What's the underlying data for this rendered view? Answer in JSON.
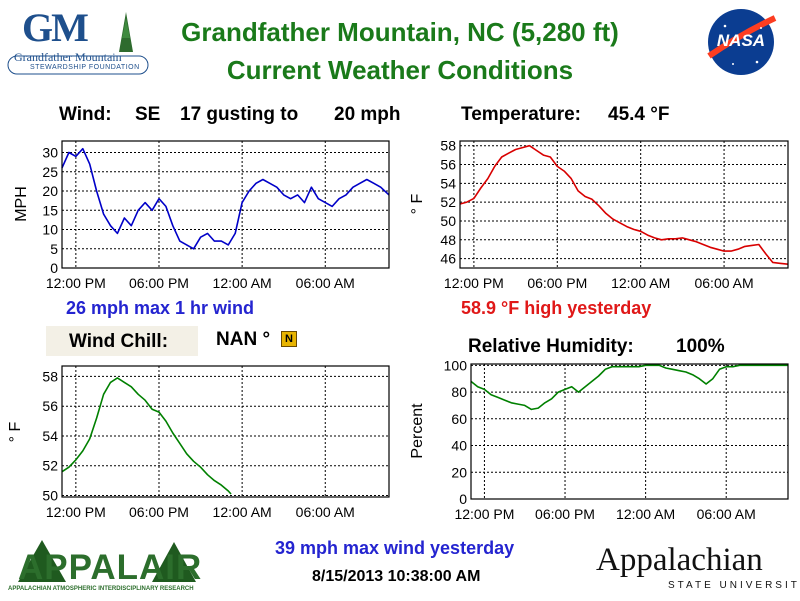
{
  "header": {
    "title_line1": "Grandfather Mountain, NC  (5,280 ft)",
    "title_line2": "Current Weather Conditions"
  },
  "logos": {
    "gm_mark": "GM",
    "gm_name": "Grandfather Mountain",
    "gm_sub": "STEWARDSHIP FOUNDATION",
    "nasa": "NASA",
    "appalair": "APPALAIR",
    "appalair_sub": "APPALACHIAN ATMOSPHERIC INTERDISCIPLINARY RESEARCH",
    "appstate": "Appalachian",
    "appstate_sub": "STATE UNIVERSITY"
  },
  "wind": {
    "label": "Wind:",
    "direction": "SE",
    "speed_text": "17 gusting to",
    "gust_text": "20 mph",
    "max_note": "26 mph max 1 hr wind"
  },
  "temperature": {
    "label": "Temperature:",
    "value": "45.4 °F",
    "high_note": "58.9 °F high yesterday"
  },
  "wind_chill": {
    "label": "Wind Chill:",
    "value": "NAN °",
    "flag_letter": "N"
  },
  "humidity": {
    "label": "Relative Humidity:",
    "value": "100%"
  },
  "footer": {
    "max_wind_yesterday": "39 mph max wind yesterday",
    "timestamp": "8/15/2013 10:38:00 AM"
  },
  "colors": {
    "title_green": "#1a7a1a",
    "wind_blue": "#0000c8",
    "temp_red": "#d80000",
    "chill_green": "#008000",
    "rh_green": "#008000",
    "note_blue": "#2424d0",
    "note_red": "#e01818"
  },
  "chart_data": [
    {
      "type": "line",
      "title": "",
      "ylabel": "MPH",
      "xlabel": "",
      "xticks": [
        "12:00 PM",
        "06:00 PM",
        "12:00 AM",
        "06:00 AM"
      ],
      "yticks": [
        0,
        5,
        10,
        15,
        20,
        25,
        30
      ],
      "ylim": [
        0,
        33
      ],
      "xlim_hours": [
        -1,
        22.6
      ],
      "grid": true,
      "series": [
        {
          "color": "#0000c8",
          "x": [
            -1,
            -0.5,
            0,
            0.5,
            1,
            1.5,
            2,
            2.5,
            3,
            3.5,
            4,
            4.5,
            5,
            5.5,
            6,
            6.5,
            7,
            7.5,
            8,
            8.5,
            9,
            9.5,
            10,
            10.5,
            11,
            11.5,
            12,
            12.5,
            13,
            13.5,
            14,
            14.5,
            15,
            15.5,
            16,
            16.5,
            17,
            17.5,
            18,
            18.5,
            19,
            19.5,
            20,
            20.5,
            21,
            21.5,
            22,
            22.6
          ],
          "y": [
            26,
            30,
            29,
            31,
            27,
            20,
            14,
            11,
            9,
            13,
            11,
            15,
            17,
            15,
            18,
            16,
            11,
            7,
            6,
            5,
            8,
            9,
            7,
            7,
            6,
            9,
            17,
            20,
            22,
            23,
            22,
            21,
            19,
            18,
            19,
            17,
            21,
            18,
            17,
            16,
            18,
            19,
            21,
            22,
            23,
            22,
            21,
            19
          ]
        }
      ]
    },
    {
      "type": "line",
      "title": "",
      "ylabel": "° F",
      "xlabel": "",
      "xticks": [
        "12:00 PM",
        "06:00 PM",
        "12:00 AM",
        "06:00 AM"
      ],
      "yticks": [
        46,
        48,
        50,
        52,
        54,
        56,
        58
      ],
      "ylim": [
        45,
        58.5
      ],
      "xlim_hours": [
        -1,
        22.6
      ],
      "grid": true,
      "series": [
        {
          "color": "#d80000",
          "x": [
            -1,
            -0.5,
            0,
            0.5,
            1,
            1.5,
            2,
            2.5,
            3,
            3.5,
            4,
            4.5,
            5,
            5.5,
            6,
            6.5,
            7,
            7.5,
            8,
            8.5,
            9,
            9.5,
            10,
            10.5,
            11,
            11.5,
            12,
            12.5,
            13,
            13.5,
            14,
            14.5,
            15,
            15.5,
            16,
            16.5,
            17,
            17.5,
            18,
            18.5,
            19,
            19.5,
            20,
            20.5,
            21,
            21.5,
            22,
            22.6
          ],
          "y": [
            51.8,
            52.0,
            52.4,
            53.5,
            54.5,
            55.8,
            56.8,
            57.2,
            57.6,
            57.8,
            58.0,
            57.5,
            57.0,
            56.8,
            55.8,
            55.3,
            54.5,
            53.2,
            52.6,
            52.3,
            51.6,
            50.8,
            50.2,
            49.8,
            49.4,
            49.1,
            48.9,
            48.5,
            48.2,
            48.0,
            48.1,
            48.1,
            48.2,
            48.0,
            47.8,
            47.5,
            47.2,
            47.0,
            46.8,
            46.8,
            47.0,
            47.3,
            47.4,
            47.5,
            46.5,
            45.6,
            45.5,
            45.4
          ]
        }
      ]
    },
    {
      "type": "line",
      "title": "",
      "ylabel": "° F",
      "xlabel": "",
      "xticks": [
        "12:00 PM",
        "06:00 PM",
        "12:00 AM",
        "06:00 AM"
      ],
      "yticks": [
        50,
        52,
        54,
        56,
        58
      ],
      "ylim": [
        49.9,
        58.7
      ],
      "xlim_hours": [
        -1,
        22.6
      ],
      "grid": true,
      "series": [
        {
          "color": "#008000",
          "x": [
            -1,
            -0.5,
            0,
            0.5,
            1,
            1.5,
            2,
            2.5,
            3,
            3.5,
            4,
            4.5,
            5,
            5.5,
            6,
            6.5,
            7,
            7.5,
            8,
            8.5,
            9,
            9.5,
            10,
            10.5,
            11,
            11.2
          ],
          "y": [
            51.6,
            51.9,
            52.4,
            53.0,
            53.8,
            55.2,
            56.8,
            57.6,
            57.9,
            57.6,
            57.3,
            56.8,
            56.4,
            55.8,
            55.6,
            55.0,
            54.2,
            53.5,
            52.8,
            52.3,
            51.9,
            51.4,
            51.0,
            50.7,
            50.3,
            50.1
          ]
        }
      ]
    },
    {
      "type": "line",
      "title": "",
      "ylabel": "Percent",
      "xlabel": "",
      "xticks": [
        "12:00 PM",
        "06:00 PM",
        "12:00 AM",
        "06:00 AM"
      ],
      "yticks": [
        0,
        20,
        40,
        60,
        80,
        100
      ],
      "ylim": [
        0,
        101
      ],
      "xlim_hours": [
        -1,
        22.6
      ],
      "grid": true,
      "series": [
        {
          "color": "#008000",
          "x": [
            -1,
            -0.5,
            0,
            0.5,
            1,
            1.5,
            2,
            2.5,
            3,
            3.5,
            4,
            4.5,
            5,
            5.5,
            6,
            6.5,
            7,
            7.5,
            8,
            8.5,
            9,
            9.5,
            10,
            10.5,
            11,
            11.5,
            12,
            12.5,
            13,
            13.5,
            14,
            14.5,
            15,
            15.5,
            16,
            16.5,
            17,
            17.5,
            18,
            18.5,
            19,
            19.5,
            20,
            20.5,
            21,
            21.5,
            22,
            22.6
          ],
          "y": [
            88,
            84,
            82,
            78,
            76,
            74,
            72,
            71,
            70,
            67,
            68,
            72,
            75,
            80,
            82,
            84,
            80,
            84,
            88,
            92,
            97,
            99,
            99,
            99,
            99,
            99,
            100,
            100,
            100,
            98,
            97,
            96,
            95,
            93,
            90,
            86,
            90,
            97,
            99,
            99,
            100,
            100,
            100,
            100,
            100,
            100,
            100,
            100
          ]
        }
      ]
    }
  ]
}
